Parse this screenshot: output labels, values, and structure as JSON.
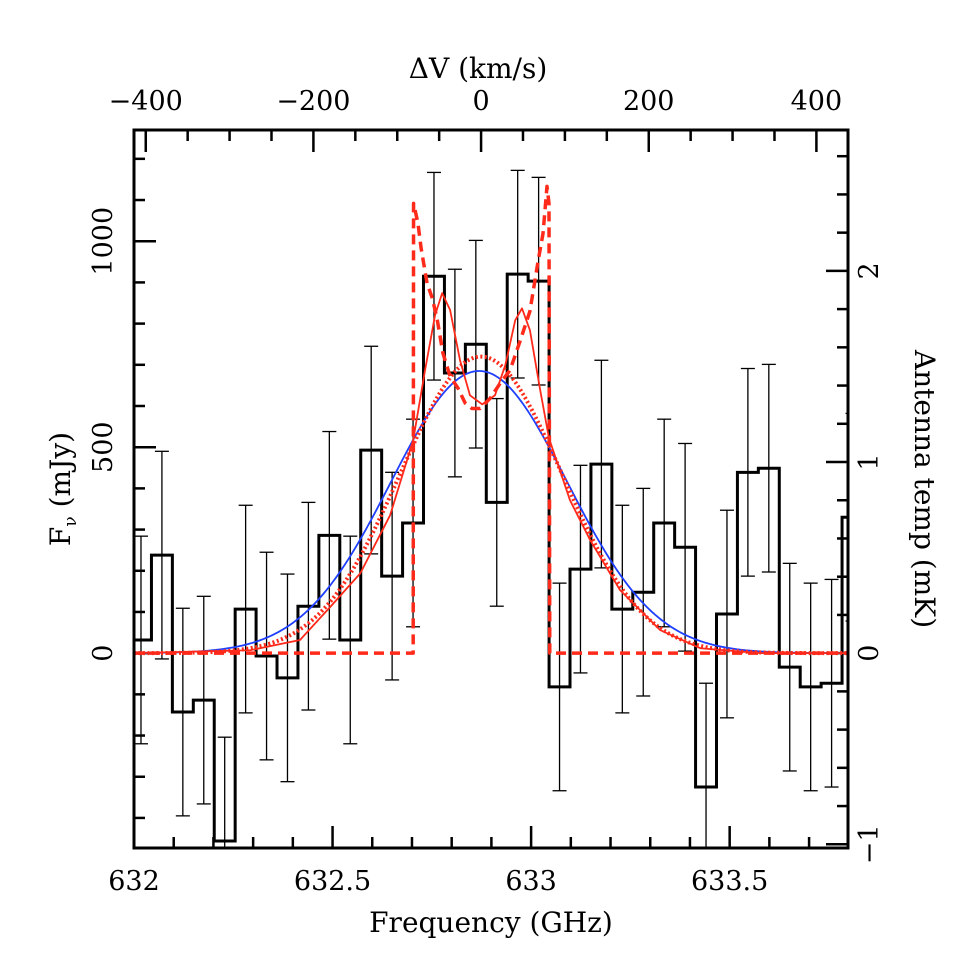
{
  "chart_data": {
    "type": "line",
    "title": "",
    "xlabel": "Frequency (GHz)",
    "ylabel": "F",
    "ylabel_sub": "ν",
    "ylabel_unit": "(mJy)",
    "x2label": "ΔV (km/s)",
    "y2label": "Antenna temp (mK)",
    "xlim": [
      632.0,
      633.798
    ],
    "ylim": [
      -473,
      1270
    ],
    "grid": false,
    "legend": "none",
    "x_ticks": {
      "major": [
        632,
        632.5,
        633,
        633.5
      ],
      "labels": [
        "632",
        "632.5",
        "633",
        "633.5"
      ],
      "minor_step": 0.1
    },
    "y_ticks": {
      "major": [
        0,
        500,
        1000
      ],
      "labels": [
        "0",
        "500",
        "1000"
      ],
      "minor_step": 100
    },
    "x2_axis": {
      "zero_freq_ghz": 632.874,
      "c_kms": 299792.458,
      "major": [
        -400,
        -200,
        0,
        200,
        400
      ],
      "labels": [
        "−400",
        "−200",
        "0",
        "200",
        "400"
      ],
      "minor_step": 50
    },
    "y2_axis": {
      "mjy_per_mk": 464,
      "major": [
        -1,
        0,
        1,
        2
      ],
      "labels": [
        "−1",
        "0",
        "1",
        "2"
      ],
      "minor_step": 0.2
    },
    "histogram": {
      "name": "Observed spectrum",
      "color": "#000000",
      "first_center_ghz": 632.0176,
      "bin_width_ghz": 0.0527,
      "values": [
        32,
        238,
        -143,
        -114,
        -456,
        107,
        -7,
        -60,
        114,
        286,
        32,
        493,
        187,
        316,
        915,
        680,
        750,
        366,
        920,
        903,
        -82,
        204,
        459,
        107,
        148,
        316,
        257,
        -325,
        95,
        439,
        449,
        -34,
        -82,
        -73,
        330
      ],
      "error": 252
    },
    "series": [
      {
        "name": "Gaussian fit",
        "style": "solid-thin",
        "color": "#1f3fff",
        "gaussian": {
          "amplitude": 685,
          "center": 632.869,
          "sigma": 0.222
        }
      },
      {
        "name": "Gaussian model (dotted)",
        "style": "dotted",
        "color": "#ff2a1a",
        "gaussian": {
          "amplitude": 720,
          "center": 632.874,
          "sigma": 0.203
        }
      },
      {
        "name": "Double-horned model (solid)",
        "style": "solid-thin",
        "color": "#ff2a1a",
        "x": [
          632.0,
          632.292,
          632.418,
          632.494,
          632.57,
          632.645,
          632.703,
          632.733,
          632.758,
          632.776,
          632.796,
          632.821,
          632.846,
          632.877,
          632.909,
          632.935,
          632.96,
          632.977,
          632.997,
          633.023,
          633.045,
          633.098,
          633.149,
          633.224,
          633.325,
          633.426,
          633.577,
          633.798
        ],
        "y": [
          0,
          7,
          32,
          112,
          194,
          335,
          517,
          687,
          820,
          874,
          833,
          711,
          626,
          604,
          626,
          699,
          808,
          837,
          784,
          638,
          522,
          371,
          274,
          153,
          56,
          12,
          0,
          0
        ]
      },
      {
        "name": "Double-horned model (dashed)",
        "style": "dashed",
        "color": "#ff2a1a",
        "x": [
          632.0,
          632.703,
          632.704,
          632.715,
          632.723,
          632.738,
          632.751,
          632.763,
          632.778,
          632.796,
          632.816,
          632.834,
          632.851,
          632.872,
          632.897,
          632.922,
          632.947,
          632.972,
          632.997,
          633.018,
          633.03,
          633.04,
          633.045,
          633.047,
          633.798
        ],
        "y": [
          0,
          0,
          1092,
          1044,
          983,
          898,
          862,
          813,
          728,
          672,
          643,
          607,
          594,
          594,
          619,
          655,
          687,
          757,
          830,
          954,
          1019,
          1133,
          1092,
          0,
          0
        ]
      }
    ]
  }
}
